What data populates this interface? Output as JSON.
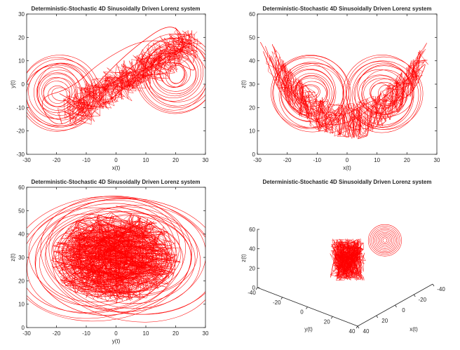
{
  "chart_data": [
    {
      "type": "line",
      "title": "Deterministic-Stochastic 4D Sinusoidally Driven Lorenz system",
      "xlabel": "x(t)",
      "ylabel": "y(t)",
      "xlim": [
        -30,
        30
      ],
      "ylim": [
        -30,
        30
      ],
      "xticks": [
        "-30",
        "-20",
        "-10",
        "0",
        "10",
        "20",
        "30"
      ],
      "yticks": [
        "-30",
        "-20",
        "-10",
        "0",
        "10",
        "20",
        "30"
      ],
      "color": "#ff0000",
      "series": [
        {
          "x": [
            -19,
            -8,
            0,
            10,
            20,
            28,
            22,
            10,
            -5,
            -15,
            -27,
            -20,
            -10,
            0,
            12,
            24,
            20,
            5,
            -8
          ],
          "y": [
            -4,
            -12,
            -5,
            8,
            10,
            4,
            16,
            20,
            10,
            -2,
            -6,
            -20,
            -10,
            2,
            14,
            12,
            28,
            15,
            -2
          ]
        }
      ]
    },
    {
      "type": "line",
      "title": "Deterministic-Stochastic 4D Sinusoidally Driven Lorenz system",
      "xlabel": "x(t)",
      "ylabel": "z(t)",
      "xlim": [
        -30,
        30
      ],
      "ylim": [
        0,
        60
      ],
      "xticks": [
        "-30",
        "-20",
        "-10",
        "0",
        "10",
        "20",
        "30"
      ],
      "yticks": [
        "0",
        "10",
        "20",
        "30",
        "40",
        "50",
        "60"
      ],
      "color": "#ff0000",
      "series": [
        {
          "x": [
            -29,
            -24,
            -18,
            -10,
            -2,
            4,
            10,
            16,
            22,
            27,
            24,
            18,
            10,
            2,
            -6,
            -14,
            -22,
            -28
          ],
          "y": [
            48,
            36,
            24,
            18,
            16,
            20,
            24,
            22,
            26,
            40,
            36,
            30,
            22,
            14,
            12,
            16,
            24,
            44
          ]
        }
      ]
    },
    {
      "type": "line",
      "title": "Deterministic-Stochastic 4D Sinusoidally Driven Lorenz system",
      "xlabel": "y(t)",
      "ylabel": "z(t)",
      "xlim": [
        -30,
        30
      ],
      "ylim": [
        0,
        60
      ],
      "xticks": [
        "-30",
        "-20",
        "-10",
        "0",
        "10",
        "20",
        "30"
      ],
      "yticks": [
        "0",
        "10",
        "20",
        "30",
        "40",
        "50",
        "60"
      ],
      "color": "#ff0000",
      "series": [
        {
          "x": [
            0,
            14,
            26,
            24,
            12,
            -4,
            -18,
            -28,
            -26,
            -14,
            2,
            16,
            20,
            8,
            -8,
            -20,
            -22,
            -10
          ],
          "y": [
            52,
            48,
            36,
            20,
            9,
            4,
            9,
            22,
            40,
            50,
            46,
            38,
            24,
            14,
            16,
            26,
            38,
            44
          ]
        }
      ]
    },
    {
      "type": "line",
      "title": "Deterministic-Stochastic 4D Sinusoidally Driven Lorenz system",
      "xlabel": "x(t)",
      "ylabel": "y(t)",
      "zlabel": "z(t)",
      "xlim": [
        -40,
        40
      ],
      "ylim": [
        -40,
        40
      ],
      "zlim": [
        0,
        60
      ],
      "xticks": [
        "-40",
        "-20",
        "0",
        "20",
        "40"
      ],
      "yticks": [
        "-40",
        "-20",
        "0",
        "20",
        "40"
      ],
      "zticks": [
        "0",
        "20",
        "40",
        "60"
      ],
      "color": "#ff0000",
      "series": [
        {
          "x": [
            -18,
            -8,
            4,
            14,
            22,
            18,
            6,
            -6,
            -16,
            -22,
            -12,
            2,
            16,
            20,
            8
          ],
          "y": [
            -4,
            -12,
            -6,
            6,
            10,
            14,
            18,
            10,
            -2,
            -8,
            -16,
            -6,
            8,
            14,
            4
          ],
          "z": [
            36,
            24,
            18,
            26,
            34,
            44,
            48,
            40,
            30,
            22,
            14,
            20,
            30,
            42,
            40
          ]
        }
      ]
    }
  ]
}
